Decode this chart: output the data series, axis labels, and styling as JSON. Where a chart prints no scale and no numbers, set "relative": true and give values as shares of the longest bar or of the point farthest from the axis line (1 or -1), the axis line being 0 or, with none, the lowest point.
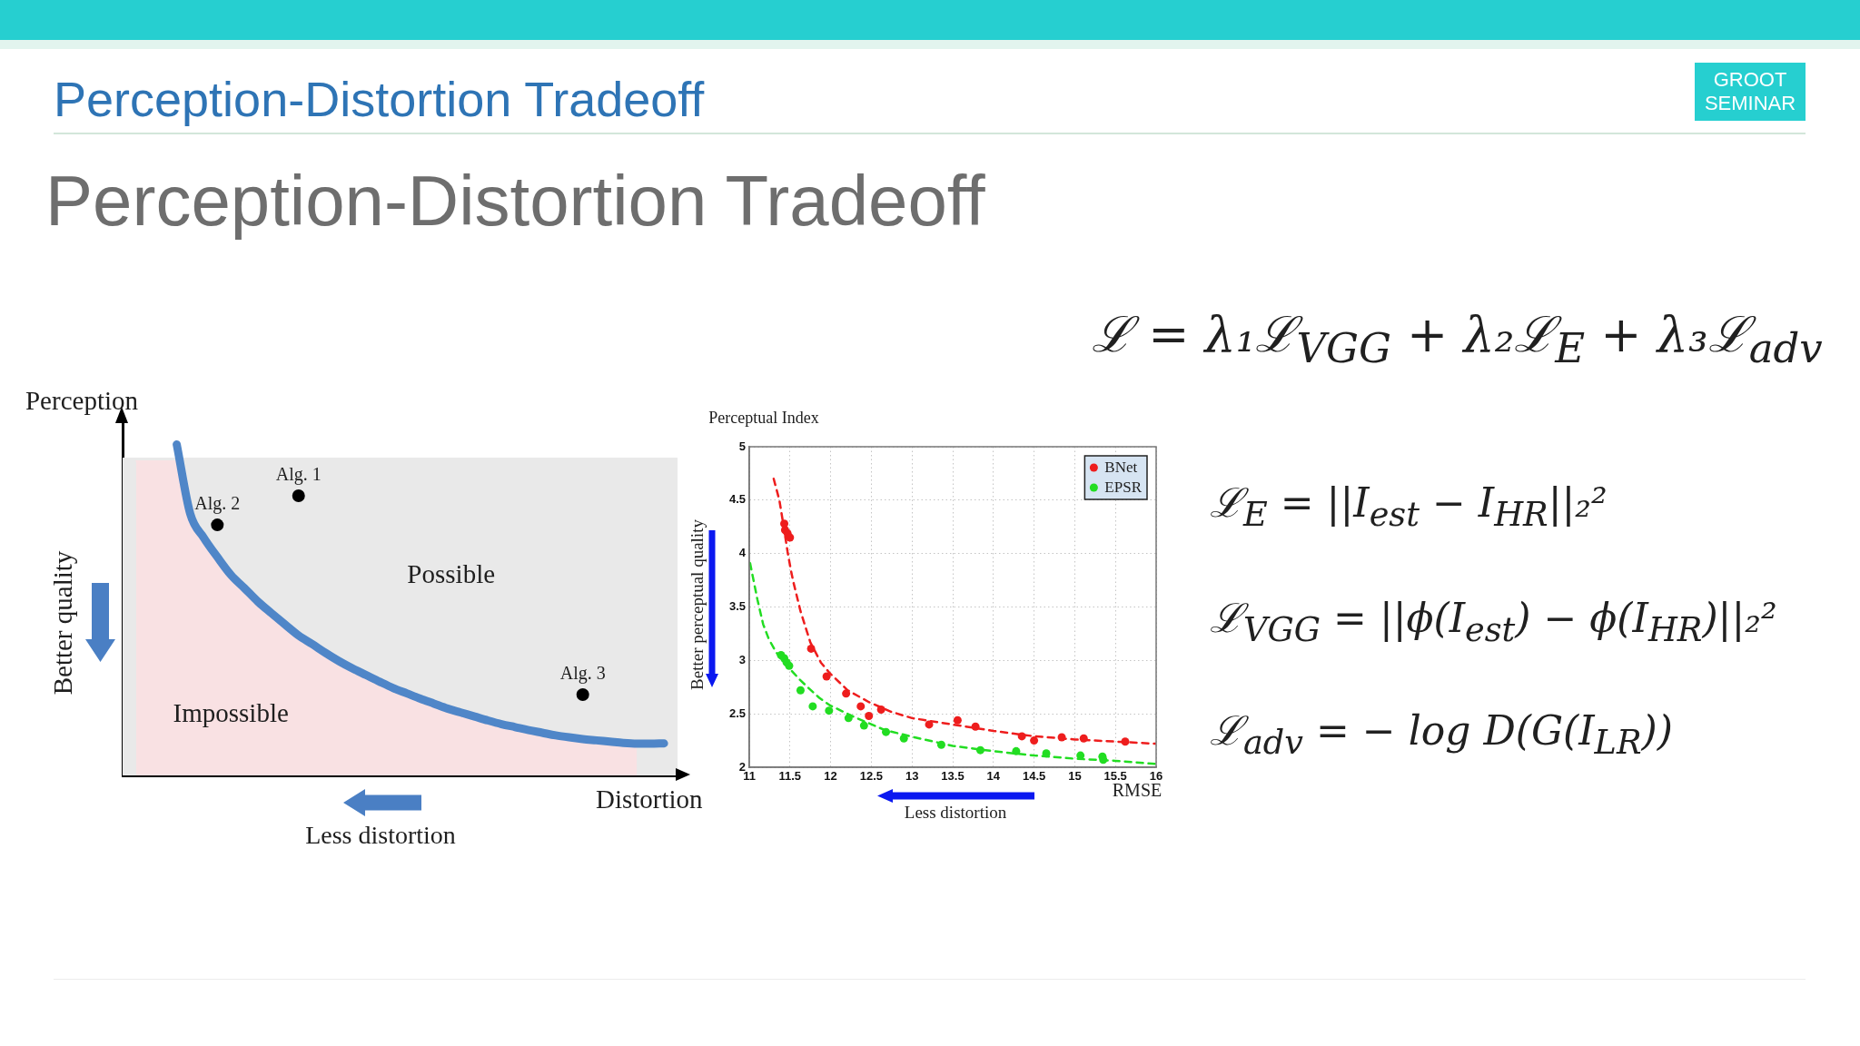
{
  "chart_data": [
    {
      "type": "other",
      "title": "Perception-Distortion Tradeoff",
      "subtitle": "Perception-Distortion Tradeoff",
      "annotations": [
        "GROOT SEMINAR"
      ]
    },
    {
      "type": "line",
      "relative": true,
      "xlabel": "Distortion",
      "ylabel": "Perception",
      "categories": [
        null,
        null,
        null,
        null,
        null,
        null,
        null,
        null,
        null,
        null,
        null,
        null,
        null,
        null,
        null,
        null,
        null,
        null,
        null,
        null,
        null,
        null,
        null,
        null,
        null,
        null,
        null,
        null,
        null,
        null,
        null,
        null,
        null,
        null,
        null,
        null,
        null,
        null,
        null,
        null,
        null,
        null
      ],
      "series": [
        {
          "type": "area",
          "name": "Impossible",
          "color": "#f9e1e3",
          "values": [
            null,
            0.95,
            0.95,
            0.95,
            0.95,
            0.79,
            0.718,
            0.66,
            0.606,
            0.566,
            0.525,
            0.49,
            0.456,
            0.423,
            0.397,
            0.37,
            0.345,
            0.323,
            0.303,
            0.283,
            0.264,
            0.248,
            0.232,
            0.217,
            0.202,
            0.19,
            0.178,
            0.166,
            0.155,
            0.146,
            0.137,
            0.129,
            0.121,
            0.115,
            0.11,
            0.106,
            0.102,
            0.098,
            0.096,
            null,
            null,
            null
          ]
        },
        {
          "type": "line",
          "color": "#4f86c8",
          "values": [
            null,
            null,
            null,
            null,
            1,
            0.79,
            0.718,
            0.66,
            0.606,
            0.566,
            0.525,
            0.49,
            0.456,
            0.423,
            0.397,
            0.37,
            0.345,
            0.323,
            0.303,
            0.283,
            0.264,
            0.248,
            0.232,
            0.217,
            0.202,
            0.19,
            0.178,
            0.166,
            0.155,
            0.146,
            0.137,
            0.129,
            0.121,
            0.115,
            0.11,
            0.106,
            0.102,
            0.098,
            0.096,
            0.096,
            0.097,
            null
          ]
        },
        {
          "type": "line",
          "marker": "circle",
          "name": "Alg. 1",
          "color": "#000000",
          "values": [
            null,
            null,
            null,
            null,
            null,
            null,
            null,
            null,
            null,
            null,
            null,
            null,
            null,
            0.845,
            null,
            null,
            null,
            null,
            null,
            null,
            null,
            null,
            null,
            null,
            null,
            null,
            null,
            null,
            null,
            null,
            null,
            null,
            null,
            null,
            null,
            null,
            null,
            null,
            null,
            null,
            null,
            null
          ]
        },
        {
          "type": "line",
          "marker": "circle",
          "name": "Alg. 2",
          "color": "#000000",
          "values": [
            null,
            null,
            null,
            null,
            null,
            null,
            null,
            0.757,
            null,
            null,
            null,
            null,
            null,
            null,
            null,
            null,
            null,
            null,
            null,
            null,
            null,
            null,
            null,
            null,
            null,
            null,
            null,
            null,
            null,
            null,
            null,
            null,
            null,
            null,
            null,
            null,
            null,
            null,
            null,
            null,
            null,
            null
          ]
        },
        {
          "type": "line",
          "marker": "circle",
          "name": "Alg. 3",
          "color": "#000000",
          "values": [
            null,
            null,
            null,
            null,
            null,
            null,
            null,
            null,
            null,
            null,
            null,
            null,
            null,
            null,
            null,
            null,
            null,
            null,
            null,
            null,
            null,
            null,
            null,
            null,
            null,
            null,
            null,
            null,
            null,
            null,
            null,
            null,
            null,
            null,
            0.244,
            null,
            null,
            null,
            null,
            null,
            null,
            null
          ]
        }
      ],
      "bands": [
        {
          "axis": "y",
          "from": 0,
          "to": 0.96,
          "label": "Possible",
          "color": "#e9e9e9"
        }
      ],
      "annotations": [
        "Better quality",
        "Less distortion"
      ]
    },
    {
      "type": "scatter",
      "ylabel": "Perceptual Index",
      "xlabel": "RMSE",
      "xlim": [
        11,
        16
      ],
      "ylim": [
        2,
        5
      ],
      "xticks": [
        11,
        11.5,
        12,
        12.5,
        13,
        13.5,
        14,
        14.5,
        15,
        15.5,
        16
      ],
      "yticks": [
        2,
        2.5,
        3,
        3.5,
        4,
        4.5,
        5
      ],
      "grid": true,
      "legend": "top right",
      "line_style": "dashed",
      "series": [
        {
          "type": "line",
          "color": "#ee1d1d",
          "x": [
            11.3,
            11.37,
            11.43,
            11.47,
            11.51,
            11.54,
            11.63,
            11.75,
            11.88,
            11.99,
            12.21,
            12.47,
            12.74,
            13,
            13.5,
            14,
            14.5,
            15,
            15.5,
            16
          ],
          "values": [
            4.7,
            4.5,
            4.22,
            4.02,
            3.85,
            3.74,
            3.46,
            3.17,
            2.98,
            2.88,
            2.72,
            2.61,
            2.52,
            2.46,
            2.4,
            2.34,
            2.29,
            2.26,
            2.24,
            2.22
          ]
        },
        {
          "type": "line",
          "color": "#22dd22",
          "x": [
            11.01,
            11.1,
            11.17,
            11.24,
            11.32,
            11.41,
            11.5,
            11.62,
            11.73,
            11.86,
            11.99,
            12.29,
            12.66,
            13.03,
            13.5,
            14,
            14.5,
            15,
            15.5,
            16
          ],
          "values": [
            3.91,
            3.57,
            3.34,
            3.2,
            3.09,
            2.99,
            2.92,
            2.82,
            2.74,
            2.65,
            2.58,
            2.47,
            2.35,
            2.28,
            2.2,
            2.15,
            2.11,
            2.08,
            2.06,
            2.03
          ]
        },
        {
          "name": "BNet",
          "color": "#ee1d1d",
          "x": [
            11.43,
            11.44,
            11.47,
            11.5,
            11.76,
            11.95,
            12.19,
            12.37,
            12.47,
            12.62,
            13.21,
            13.56,
            13.78,
            14.35,
            14.5,
            14.84,
            15.11,
            15.62
          ],
          "values": [
            4.28,
            4.22,
            4.19,
            4.15,
            3.11,
            2.85,
            2.69,
            2.57,
            2.48,
            2.54,
            2.4,
            2.44,
            2.38,
            2.29,
            2.25,
            2.28,
            2.27,
            2.24
          ]
        },
        {
          "name": "EPSR",
          "color": "#22dd22",
          "x": [
            11.39,
            11.43,
            11.46,
            11.49,
            11.63,
            11.78,
            11.98,
            12.22,
            12.41,
            12.68,
            12.9,
            13.36,
            13.84,
            14.28,
            14.65,
            15.07,
            15.34,
            15.35
          ],
          "values": [
            3.05,
            3.02,
            2.98,
            2.95,
            2.72,
            2.57,
            2.53,
            2.46,
            2.39,
            2.33,
            2.27,
            2.21,
            2.16,
            2.15,
            2.13,
            2.11,
            2.1,
            2.07
          ]
        }
      ],
      "annotations": [
        "Better perceptual quality",
        "Less distortion"
      ]
    },
    {
      "type": "other",
      "annotations": [
        "ℒ = λ₁ℒ$_{VGG}$ + λ₂ℒ$_{E}$ + λ₃ℒ$_{adv}$",
        "ℒ$_{E}$ = ||I$_{est}$ − I$_{HR}$||₂²",
        "ℒ$_{VGG}$ = ||ϕ(I$_{est}$) − ϕ(I$_{HR}$)||₂²",
        "ℒ$_{adv}$ = − log D(G(I$_{LR}$))"
      ]
    }
  ]
}
